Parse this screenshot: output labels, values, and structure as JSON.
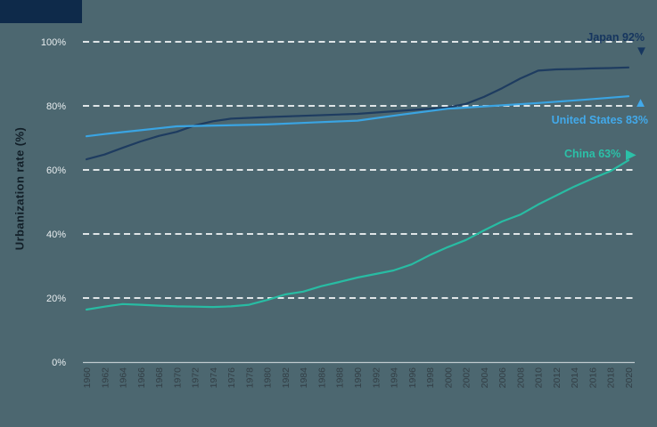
{
  "chart_data": {
    "type": "line",
    "title": "",
    "xlabel": "",
    "ylabel": "Urbanization rate (%)",
    "xlim": [
      1960,
      2020
    ],
    "ylim": [
      0,
      100
    ],
    "grid": "horizontal-dashed-white",
    "legend_position": "end-of-line annotations at right",
    "x_tick_labels": [
      "1960",
      "1962",
      "1964",
      "1966",
      "1968",
      "1970",
      "1972",
      "1974",
      "1976",
      "1978",
      "1980",
      "1982",
      "1984",
      "1986",
      "1988",
      "1990",
      "1992",
      "1994",
      "1996",
      "1998",
      "2000",
      "2002",
      "2004",
      "2006",
      "2008",
      "2010",
      "2012",
      "2014",
      "2016",
      "2018",
      "2020"
    ],
    "y_tick_values": [
      0,
      20,
      40,
      60,
      80,
      100
    ],
    "y_tick_labels": [
      "0%",
      "20%",
      "40%",
      "60%",
      "80%",
      "100%"
    ],
    "series": [
      {
        "name": "Japan",
        "color": "#1E3C60",
        "label_color": "#16365F",
        "end_label": "Japan 92%",
        "end_value_pct": 92,
        "marker_glyph": "▼",
        "marker_direction": "down",
        "points": [
          [
            1960,
            63.3
          ],
          [
            1962,
            64.8
          ],
          [
            1964,
            66.9
          ],
          [
            1966,
            68.9
          ],
          [
            1968,
            70.6
          ],
          [
            1970,
            71.9
          ],
          [
            1972,
            73.9
          ],
          [
            1974,
            75.2
          ],
          [
            1976,
            76.0
          ],
          [
            1980,
            76.5
          ],
          [
            1985,
            77.0
          ],
          [
            1990,
            77.5
          ],
          [
            1995,
            78.5
          ],
          [
            2000,
            79.5
          ],
          [
            2002,
            80.6
          ],
          [
            2004,
            82.8
          ],
          [
            2006,
            85.5
          ],
          [
            2008,
            88.5
          ],
          [
            2010,
            91.0
          ],
          [
            2012,
            91.4
          ],
          [
            2014,
            91.5
          ],
          [
            2016,
            91.7
          ],
          [
            2018,
            91.8
          ],
          [
            2020,
            92.0
          ]
        ]
      },
      {
        "name": "United States",
        "color": "#3AA4E2",
        "label_color": "#42A9EA",
        "end_label": "United States 83%",
        "end_value_pct": 83,
        "marker_glyph": "▲",
        "marker_direction": "up",
        "points": [
          [
            1960,
            70.5
          ],
          [
            1962,
            71.2
          ],
          [
            1964,
            71.8
          ],
          [
            1966,
            72.4
          ],
          [
            1968,
            73.0
          ],
          [
            1970,
            73.6
          ],
          [
            1975,
            73.9
          ],
          [
            1980,
            74.2
          ],
          [
            1985,
            74.8
          ],
          [
            1990,
            75.4
          ],
          [
            1995,
            77.3
          ],
          [
            2000,
            79.1
          ],
          [
            2005,
            80.0
          ],
          [
            2010,
            80.9
          ],
          [
            2015,
            81.9
          ],
          [
            2020,
            83.0
          ]
        ]
      },
      {
        "name": "China",
        "color": "#28BCA3",
        "label_color": "#2BC1A8",
        "end_label": "China 63%",
        "end_value_pct": 63,
        "marker_glyph": "▶",
        "marker_direction": "right",
        "points": [
          [
            1960,
            16.4
          ],
          [
            1962,
            17.3
          ],
          [
            1964,
            18.1
          ],
          [
            1966,
            17.9
          ],
          [
            1968,
            17.6
          ],
          [
            1970,
            17.4
          ],
          [
            1972,
            17.3
          ],
          [
            1974,
            17.2
          ],
          [
            1976,
            17.4
          ],
          [
            1978,
            17.9
          ],
          [
            1980,
            19.4
          ],
          [
            1982,
            21.1
          ],
          [
            1984,
            22.0
          ],
          [
            1986,
            23.7
          ],
          [
            1988,
            25.0
          ],
          [
            1990,
            26.4
          ],
          [
            1992,
            27.5
          ],
          [
            1994,
            28.6
          ],
          [
            1996,
            30.5
          ],
          [
            1998,
            33.4
          ],
          [
            2000,
            35.9
          ],
          [
            2002,
            38.1
          ],
          [
            2004,
            41.1
          ],
          [
            2006,
            43.9
          ],
          [
            2008,
            46.0
          ],
          [
            2010,
            49.2
          ],
          [
            2012,
            52.0
          ],
          [
            2014,
            54.8
          ],
          [
            2016,
            57.3
          ],
          [
            2018,
            59.6
          ],
          [
            2020,
            63.0
          ]
        ]
      }
    ]
  },
  "colors": {
    "background": "#4C6770",
    "gridline": "#F4F7F8",
    "axis_line": "#BFC9CE",
    "y_tick_text": "#E8EDEF",
    "x_tick_text": "#333F46",
    "y_axis_title_text": "#121F28",
    "corner_accent_block": "#0E2A4A"
  }
}
